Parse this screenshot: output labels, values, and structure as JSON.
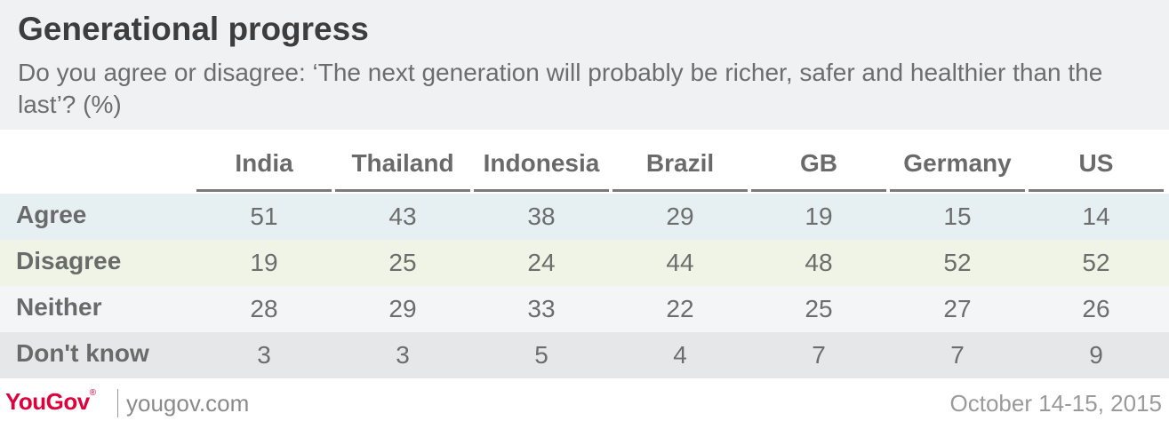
{
  "title": "Generational progress",
  "subtitle": "Do you agree or disagree: ‘The next generation will probably be richer, safer and healthier than the last’? (%)",
  "footer": {
    "brand": "YouGov",
    "site": "yougov.com",
    "date": "October 14-15, 2015"
  },
  "colors": {
    "header_bg": "#f0f1f2",
    "agree_row": "#e6f0f2",
    "disagree_row": "#f0f4e6",
    "neither_row": "#f4f5f6",
    "dontknow_row": "#e6e7e8",
    "brand": "#e0003c"
  },
  "chart_data": {
    "type": "table",
    "title": "Generational progress",
    "subtitle": "Do you agree or disagree: ‘The next generation will probably be richer, safer and healthier than the last’? (%)",
    "columns": [
      "India",
      "Thailand",
      "Indonesia",
      "Brazil",
      "GB",
      "Germany",
      "US"
    ],
    "rows": [
      {
        "label": "Agree",
        "values": [
          51,
          43,
          38,
          29,
          19,
          15,
          14
        ]
      },
      {
        "label": "Disagree",
        "values": [
          19,
          25,
          24,
          44,
          48,
          52,
          52
        ]
      },
      {
        "label": "Neither",
        "values": [
          28,
          29,
          33,
          22,
          25,
          27,
          26
        ]
      },
      {
        "label": "Don't know",
        "values": [
          3,
          3,
          5,
          4,
          7,
          7,
          9
        ]
      }
    ]
  }
}
